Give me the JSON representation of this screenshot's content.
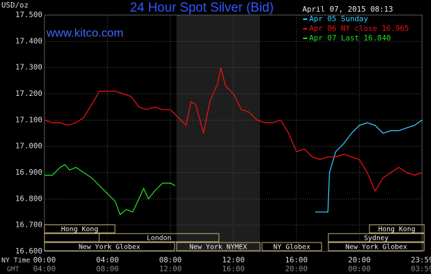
{
  "chart_data": {
    "type": "line",
    "title": "24 Hour Spot Silver (Bid)",
    "unit_label": "USD/oz",
    "timestamp": "April 07, 2015 08:13",
    "watermark": "www.kitco.com",
    "x_axis_labels": [
      "NY Time",
      "GMT"
    ],
    "xlim": [
      0,
      23.983
    ],
    "xticks": [
      {
        "value": 0,
        "label": "00:00"
      },
      {
        "value": 4,
        "label": "04:00"
      },
      {
        "value": 8,
        "label": "08:00"
      },
      {
        "value": 12,
        "label": "12:00"
      },
      {
        "value": 16,
        "label": "16:00"
      },
      {
        "value": 20,
        "label": "20:00"
      },
      {
        "value": 23.983,
        "label": "23:59"
      }
    ],
    "gmt_tick_labels": [
      "04:00",
      "08:00",
      "12:00",
      "16:00",
      "20:00",
      "00:00",
      "03:59"
    ],
    "ylim": [
      16.6,
      17.5
    ],
    "yticks": [
      {
        "value": 16.6,
        "label": "16.600"
      },
      {
        "value": 16.7,
        "label": "16.700"
      },
      {
        "value": 16.8,
        "label": "16.800"
      },
      {
        "value": 16.9,
        "label": "16.900"
      },
      {
        "value": 17.0,
        "label": "17.000"
      },
      {
        "value": 17.1,
        "label": "17.100"
      },
      {
        "value": 17.2,
        "label": "17.200"
      },
      {
        "value": 17.3,
        "label": "17.300"
      },
      {
        "value": 17.4,
        "label": "17.400"
      },
      {
        "value": 17.5,
        "label": "17.500"
      }
    ],
    "grid": true,
    "series": [
      {
        "name": "Apr 05 Sunday",
        "color": "#33ccff",
        "x": [
          17.2,
          18.0,
          18.1,
          18.5,
          19.0,
          19.5,
          20.0,
          20.5,
          21.0,
          21.5,
          22.0,
          22.5,
          23.0,
          23.5,
          23.98
        ],
        "values": [
          16.75,
          16.75,
          16.9,
          16.98,
          17.01,
          17.05,
          17.08,
          17.09,
          17.08,
          17.05,
          17.06,
          17.06,
          17.07,
          17.08,
          17.1
        ]
      },
      {
        "name": "Apr 06 NY close 16.965",
        "color": "#ee1111",
        "x": [
          0,
          0.5,
          1.0,
          1.5,
          2.0,
          2.5,
          3.0,
          3.5,
          4.0,
          4.5,
          5.0,
          5.5,
          6.0,
          6.5,
          7.0,
          7.5,
          8.0,
          8.5,
          9.0,
          9.3,
          9.6,
          10.1,
          10.5,
          11.0,
          11.2,
          11.5,
          12.0,
          12.5,
          13.0,
          13.5,
          14.0,
          14.5,
          15.0,
          15.5,
          16.0,
          16.5,
          17.0,
          17.5,
          18.0,
          18.5,
          19.0,
          19.5,
          20.0,
          20.5,
          21.0,
          21.5,
          22.0,
          22.5,
          23.0,
          23.5,
          23.98
        ],
        "values": [
          17.1,
          17.09,
          17.09,
          17.08,
          17.09,
          17.11,
          17.16,
          17.21,
          17.21,
          17.21,
          17.2,
          17.19,
          17.15,
          17.14,
          17.15,
          17.14,
          17.14,
          17.11,
          17.08,
          17.17,
          17.16,
          17.05,
          17.17,
          17.24,
          17.3,
          17.23,
          17.2,
          17.14,
          17.13,
          17.1,
          17.09,
          17.09,
          17.1,
          17.05,
          16.98,
          16.99,
          16.96,
          16.95,
          16.96,
          16.96,
          16.97,
          16.96,
          16.95,
          16.9,
          16.83,
          16.88,
          16.9,
          16.92,
          16.9,
          16.89,
          16.9
        ]
      },
      {
        "name": "Apr 07 Last 16.840",
        "color": "#22dd22",
        "x": [
          0,
          0.5,
          1.0,
          1.3,
          1.6,
          2.0,
          2.5,
          3.0,
          3.5,
          4.0,
          4.5,
          4.8,
          5.2,
          5.6,
          6.0,
          6.3,
          6.6,
          7.0,
          7.5,
          8.0,
          8.3
        ],
        "values": [
          16.89,
          16.89,
          16.92,
          16.93,
          16.91,
          16.92,
          16.9,
          16.88,
          16.85,
          16.82,
          16.79,
          16.74,
          16.76,
          16.75,
          16.8,
          16.84,
          16.8,
          16.83,
          16.86,
          16.86,
          16.85
        ]
      }
    ],
    "sessions": [
      "Hong Kong",
      "Hong Kong",
      "London",
      "Sydney",
      "New York Globex",
      "New York NYMEX",
      "NY Globex",
      "New York Globex"
    ]
  }
}
